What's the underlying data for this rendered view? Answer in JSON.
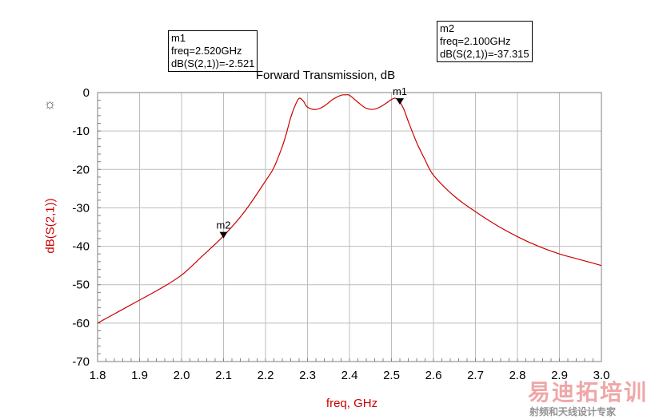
{
  "chart_data": {
    "type": "line",
    "title": "Forward Transmission, dB",
    "xlabel": "freq, GHz",
    "ylabel": "dB(S(2,1))",
    "xlim": [
      1.8,
      3.0
    ],
    "ylim": [
      -70,
      0
    ],
    "xticks": [
      "1.8",
      "1.9",
      "2.0",
      "2.1",
      "2.2",
      "2.3",
      "2.4",
      "2.5",
      "2.6",
      "2.7",
      "2.8",
      "2.9",
      "3.0"
    ],
    "yticks": [
      "0",
      "-10",
      "-20",
      "-30",
      "-40",
      "-50",
      "-60",
      "-70"
    ],
    "grid": true,
    "series": [
      {
        "color": "#cc0000",
        "x": [
          1.8,
          1.85,
          1.9,
          1.95,
          2.0,
          2.05,
          2.1,
          2.15,
          2.2,
          2.22,
          2.24,
          2.25,
          2.26,
          2.27,
          2.28,
          2.29,
          2.3,
          2.32,
          2.34,
          2.36,
          2.38,
          2.39,
          2.4,
          2.42,
          2.44,
          2.46,
          2.48,
          2.5,
          2.51,
          2.52,
          2.53,
          2.54,
          2.56,
          2.58,
          2.6,
          2.65,
          2.7,
          2.75,
          2.8,
          2.85,
          2.9,
          2.95,
          3.0
        ],
        "y": [
          -60,
          -57,
          -54,
          -51,
          -47.5,
          -42.5,
          -37.3,
          -31,
          -23,
          -19.5,
          -14,
          -10.5,
          -6.5,
          -3.5,
          -1.5,
          -2.2,
          -3.8,
          -4.4,
          -3.5,
          -1.8,
          -0.7,
          -0.6,
          -0.7,
          -2.5,
          -4.1,
          -4.3,
          -3.3,
          -1.8,
          -1.5,
          -2.5,
          -4.5,
          -7.5,
          -13,
          -17.5,
          -21.5,
          -27,
          -31,
          -34.5,
          -37.5,
          -40,
          -42,
          -43.5,
          -45
        ]
      }
    ],
    "markers": [
      {
        "label": "m1",
        "x": 2.52,
        "y": -2.521
      },
      {
        "label": "m2",
        "x": 2.1,
        "y": -37.315
      }
    ]
  },
  "marker_boxes": {
    "m1": {
      "name": "m1",
      "freq": "freq=2.520GHz",
      "value": "dB(S(2,1))=-2.521"
    },
    "m2": {
      "name": "m2",
      "freq": "freq=2.100GHz",
      "value": "dB(S(2,1))=-37.315"
    }
  },
  "watermark": {
    "main": "易迪拓培训",
    "sub": "射频和天线设计专家"
  },
  "icons": {
    "toolbar": "sun-icon"
  }
}
